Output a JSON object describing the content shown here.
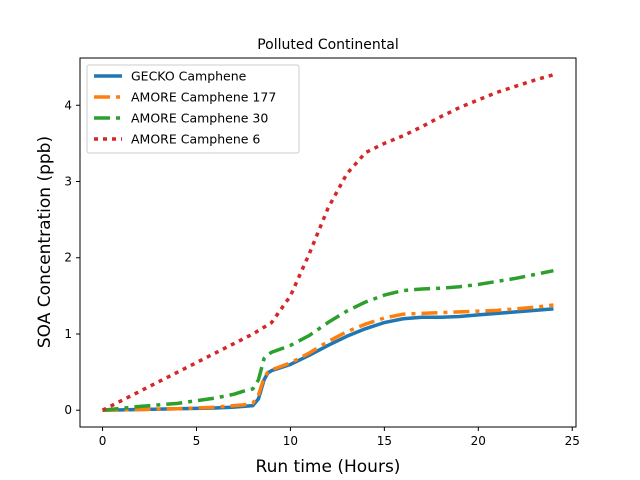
{
  "chart_data": {
    "type": "line",
    "title": "Polluted Continental",
    "xlabel": "Run time (Hours)",
    "ylabel": "SOA Concentration (ppb)",
    "xlim": [
      -1.2,
      25.2
    ],
    "ylim": [
      -0.22,
      4.62
    ],
    "xticks": [
      0,
      5,
      10,
      15,
      20,
      25
    ],
    "yticks": [
      0,
      1,
      2,
      3,
      4
    ],
    "grid": false,
    "legend_position": "upper-left",
    "series": [
      {
        "name": "GECKO Camphene",
        "color": "#1f77b4",
        "style": "solid",
        "x": [
          0,
          2,
          4,
          6,
          7,
          7.5,
          8,
          8.3,
          8.6,
          8.8,
          9,
          10,
          11,
          12,
          13,
          14,
          15,
          16,
          17,
          18,
          19,
          20,
          21,
          22,
          23,
          24
        ],
        "y": [
          0,
          0.01,
          0.02,
          0.03,
          0.04,
          0.05,
          0.06,
          0.15,
          0.4,
          0.49,
          0.52,
          0.6,
          0.72,
          0.85,
          0.97,
          1.07,
          1.15,
          1.2,
          1.22,
          1.22,
          1.23,
          1.25,
          1.27,
          1.29,
          1.31,
          1.33
        ]
      },
      {
        "name": "AMORE Camphene 177",
        "color": "#ff7f0e",
        "style": "dashdot",
        "x": [
          0,
          2,
          4,
          6,
          7,
          7.5,
          8,
          8.3,
          8.6,
          8.8,
          9,
          10,
          11,
          12,
          13,
          14,
          15,
          16,
          17,
          18,
          19,
          20,
          21,
          22,
          23,
          24
        ],
        "y": [
          0,
          0.01,
          0.02,
          0.04,
          0.06,
          0.07,
          0.09,
          0.2,
          0.43,
          0.5,
          0.53,
          0.62,
          0.75,
          0.9,
          1.03,
          1.13,
          1.21,
          1.26,
          1.27,
          1.28,
          1.29,
          1.3,
          1.31,
          1.33,
          1.35,
          1.38
        ]
      },
      {
        "name": "AMORE Camphene 30",
        "color": "#2ca02c",
        "style": "dashdot",
        "x": [
          0,
          2,
          4,
          6,
          7,
          7.5,
          8,
          8.3,
          8.6,
          8.8,
          9,
          10,
          11,
          12,
          13,
          14,
          15,
          16,
          17,
          18,
          19,
          20,
          21,
          22,
          23,
          24
        ],
        "y": [
          0,
          0.05,
          0.09,
          0.16,
          0.21,
          0.25,
          0.28,
          0.4,
          0.68,
          0.73,
          0.76,
          0.85,
          0.98,
          1.15,
          1.3,
          1.42,
          1.51,
          1.57,
          1.59,
          1.6,
          1.62,
          1.65,
          1.69,
          1.73,
          1.78,
          1.83
        ]
      },
      {
        "name": "AMORE Camphene 6",
        "color": "#d62728",
        "style": "dotted",
        "x": [
          0,
          2,
          4,
          6,
          8,
          9,
          10,
          11,
          12,
          13,
          14,
          15,
          16,
          17,
          18,
          19,
          20,
          21,
          22,
          23,
          24
        ],
        "y": [
          0,
          0.25,
          0.5,
          0.75,
          1.0,
          1.15,
          1.5,
          2.05,
          2.65,
          3.1,
          3.38,
          3.5,
          3.6,
          3.72,
          3.85,
          3.97,
          4.07,
          4.17,
          4.25,
          4.33,
          4.4
        ]
      }
    ]
  }
}
